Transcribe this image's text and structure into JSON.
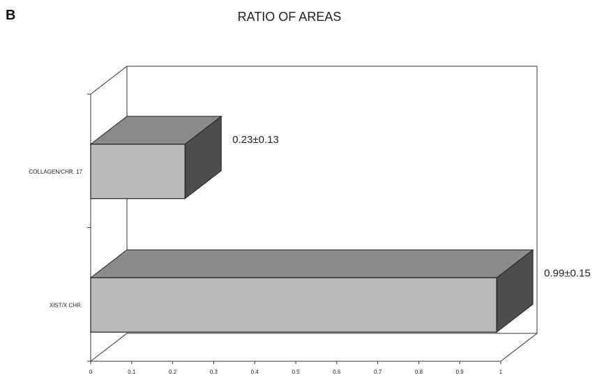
{
  "panel_label": "B",
  "chart_data": {
    "type": "bar",
    "orientation": "horizontal",
    "style": "3d",
    "title": "RATIO OF AREAS",
    "xlabel": "",
    "ylabel": "",
    "categories": [
      "COLLAGEN/CHR. 17",
      "XIST/X CHR."
    ],
    "values": [
      0.23,
      0.99
    ],
    "errors": [
      0.13,
      0.15
    ],
    "data_labels": [
      "0.23±0.13",
      "0.99±0.15"
    ],
    "xlim": [
      0,
      1
    ],
    "x_ticks": [
      "0",
      "0.1",
      "0.2",
      "0.3",
      "0.4",
      "0.5",
      "0.6",
      "0.7",
      "0.8",
      "0.9",
      "1"
    ],
    "grid": false,
    "legend": "none",
    "colors": {
      "bar_front": "#b9b9b9",
      "bar_top": "#8a8a8a",
      "bar_side": "#4d4d4d",
      "outline": "#222222",
      "frame": "#333333"
    }
  }
}
